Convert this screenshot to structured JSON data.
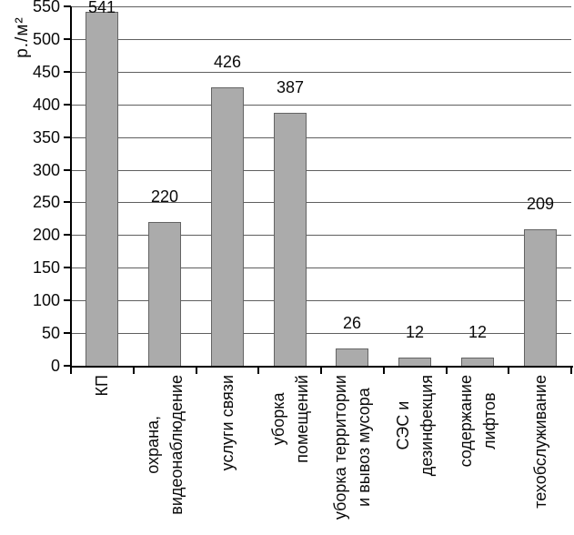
{
  "chart_data": {
    "type": "bar",
    "title": "",
    "ylabel": "р./м²",
    "xlabel": "",
    "categories": [
      "КП",
      "охрана, видеонаблюдение",
      "услуги связи",
      "уборка помещений",
      "уборка территории и вывоз мусора",
      "СЭС и дезинфекция",
      "содержание лифтов",
      "техобслуживание"
    ],
    "category_lines": [
      [
        "КП"
      ],
      [
        "охрана,",
        "видеонаблюдение"
      ],
      [
        "услуги связи"
      ],
      [
        "уборка",
        "помещений"
      ],
      [
        "уборка территории",
        "и вывоз мусора"
      ],
      [
        "СЭС и",
        "дезинфекция"
      ],
      [
        "содержание",
        "лифтов"
      ],
      [
        "техобслуживание"
      ]
    ],
    "values": [
      541,
      220,
      426,
      387,
      26,
      12,
      12,
      209
    ],
    "data_labels": [
      "541",
      "220",
      "426",
      "387",
      "26",
      "12",
      "12",
      "209"
    ],
    "ylim": [
      0,
      550
    ],
    "ytick_step": 50,
    "yticks": [
      0,
      50,
      100,
      150,
      200,
      250,
      300,
      350,
      400,
      450,
      500,
      550
    ],
    "grid": true,
    "legend": "none",
    "colors": {
      "bar_fill": "#ababab",
      "bar_border": "#646464",
      "axis": "#000000",
      "gridline": "#5f5f5f",
      "text": "#0a0a0a",
      "background": "#ffffff"
    }
  }
}
